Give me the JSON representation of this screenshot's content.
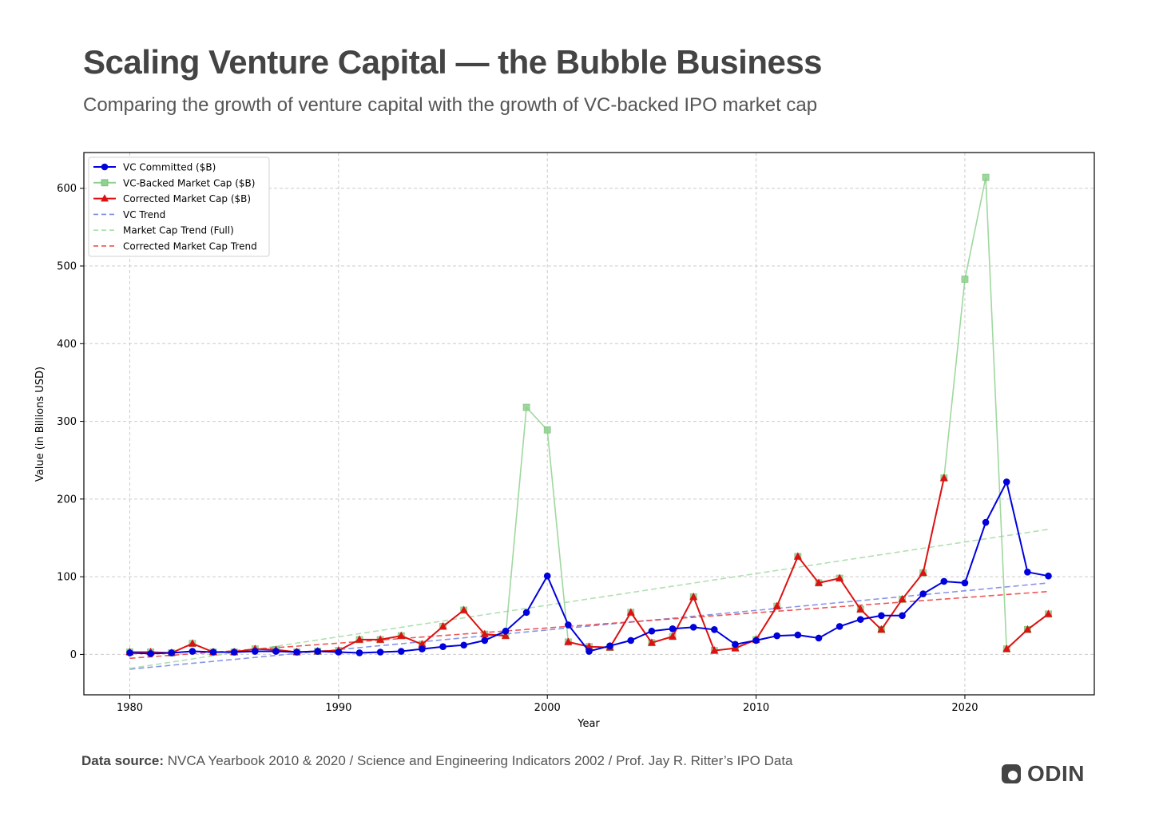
{
  "header": {
    "title": "Scaling Venture Capital — the Bubble Business",
    "subtitle": "Comparing the growth of venture capital with the growth of VC-backed IPO market cap"
  },
  "footer": {
    "source_label": "Data source:",
    "source_text": "NVCA Yearbook 2010 & 2020 / Science and Engineering Indicators 2002 / Prof. Jay R. Ritter’s IPO Data",
    "brand": "ODIN"
  },
  "colors": {
    "vc": "#0000dd",
    "market": "#8fd18f",
    "corrected": "#dd1111",
    "vc_trend": "#7b8ae6",
    "market_trend": "#a9dca9",
    "corrected_trend": "#ee4444"
  },
  "chart_data": {
    "type": "line",
    "xlabel": "Year",
    "ylabel": "Value (in Billions USD)",
    "xlim": [
      1977.8,
      2026.2
    ],
    "ylim": [
      -52,
      646
    ],
    "xticks": [
      1980,
      1990,
      2000,
      2010,
      2020
    ],
    "yticks": [
      0,
      100,
      200,
      300,
      400,
      500,
      600
    ],
    "grid": true,
    "legend_position": "top-left",
    "x": [
      1980,
      1981,
      1982,
      1983,
      1984,
      1985,
      1986,
      1987,
      1988,
      1989,
      1990,
      1991,
      1992,
      1993,
      1994,
      1995,
      1996,
      1997,
      1998,
      1999,
      2000,
      2001,
      2002,
      2003,
      2004,
      2005,
      2006,
      2007,
      2008,
      2009,
      2010,
      2011,
      2012,
      2013,
      2014,
      2015,
      2016,
      2017,
      2018,
      2019,
      2020,
      2021,
      2022,
      2023,
      2024
    ],
    "series": [
      {
        "name": "VC Committed ($B)",
        "marker": "circle",
        "color_key": "vc",
        "values": [
          2,
          1,
          2,
          4,
          3,
          3,
          4,
          4,
          3,
          4,
          3,
          2,
          3,
          4,
          7,
          10,
          12,
          18,
          30,
          54,
          101,
          38,
          4,
          11,
          18,
          30,
          33,
          35,
          32,
          13,
          18,
          24,
          25,
          21,
          36,
          45,
          50,
          50,
          78,
          94,
          92,
          170,
          222,
          106,
          101
        ]
      },
      {
        "name": "VC-Backed Market Cap ($B)",
        "marker": "square",
        "color_key": "market",
        "values": [
          3,
          3,
          2,
          14,
          3,
          3,
          7,
          6,
          3,
          4,
          5,
          19,
          19,
          24,
          13,
          36,
          57,
          26,
          24,
          318,
          289,
          16,
          10,
          9,
          54,
          15,
          23,
          74,
          5,
          8,
          19,
          62,
          126,
          92,
          98,
          58,
          32,
          71,
          105,
          227,
          483,
          614,
          7,
          32,
          52
        ]
      },
      {
        "name": "Corrected Market Cap ($B)",
        "marker": "triangle",
        "color_key": "corrected",
        "values": [
          3,
          3,
          2,
          14,
          3,
          3,
          7,
          6,
          3,
          4,
          5,
          19,
          19,
          24,
          13,
          36,
          57,
          26,
          24,
          null,
          null,
          16,
          10,
          9,
          54,
          15,
          23,
          74,
          5,
          8,
          19,
          62,
          126,
          92,
          98,
          58,
          32,
          71,
          105,
          227,
          null,
          null,
          7,
          32,
          52
        ]
      }
    ],
    "trends": [
      {
        "name": "VC Trend",
        "color_key": "vc_trend",
        "start": -19,
        "end": 92
      },
      {
        "name": "Market Cap Trend (Full)",
        "color_key": "market_trend",
        "start": -18,
        "end": 161
      },
      {
        "name": "Corrected Market Cap Trend",
        "color_key": "corrected_trend",
        "start": -5,
        "end": 81
      }
    ]
  }
}
